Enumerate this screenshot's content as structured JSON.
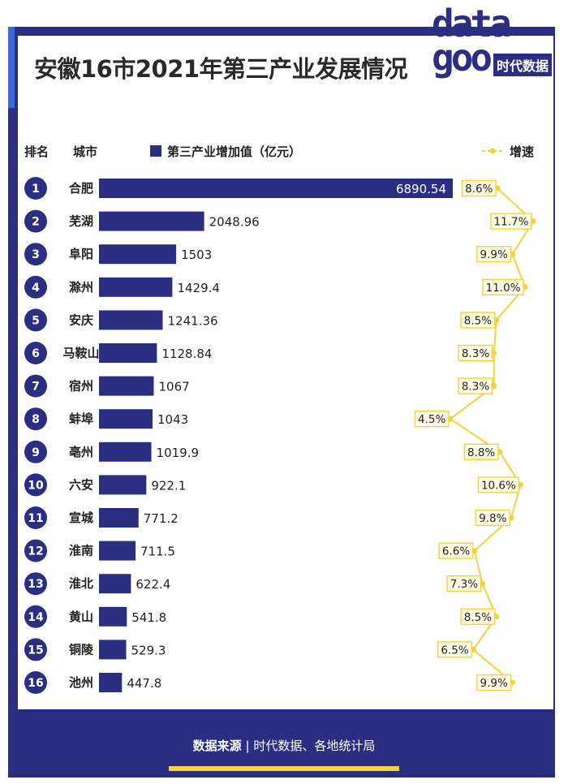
{
  "title": "安徽16市2021年第三产业发展情况",
  "logo": {
    "mark": "data\ngoo",
    "tag": "时代数据"
  },
  "headers": {
    "rank": "排名",
    "city": "城市",
    "bar_legend": "第三产业增加值（亿元）",
    "line_legend": "增速"
  },
  "footer": {
    "label": "数据来源",
    "separator": "|",
    "text": "时代数据、各地统计局"
  },
  "colors": {
    "bar": "#2b2f82",
    "line": "#f3d23a",
    "frame": "#2b2f82"
  },
  "chart_data": {
    "type": "bar",
    "orientation": "horizontal",
    "title": "安徽16市2021年第三产业发展情况",
    "categories": [
      "合肥",
      "芜湖",
      "阜阳",
      "滁州",
      "安庆",
      "马鞍山",
      "宿州",
      "蚌埠",
      "亳州",
      "六安",
      "宣城",
      "淮南",
      "淮北",
      "黄山",
      "铜陵",
      "池州"
    ],
    "ranks": [
      "1",
      "2",
      "3",
      "4",
      "5",
      "6",
      "7",
      "8",
      "9",
      "10",
      "11",
      "12",
      "13",
      "14",
      "15",
      "16"
    ],
    "series": [
      {
        "name": "第三产业增加值（亿元）",
        "type": "bar",
        "values": [
          6890.54,
          2048.96,
          1503,
          1429.4,
          1241.36,
          1128.84,
          1067,
          1043,
          1019.9,
          922.1,
          771.2,
          711.5,
          622.4,
          541.8,
          529.3,
          447.8
        ],
        "labels": [
          "6890.54",
          "2048.96",
          "1503",
          "1429.4",
          "1241.36",
          "1128.84",
          "1067",
          "1043",
          "1019.9",
          "922.1",
          "771.2",
          "711.5",
          "622.4",
          "541.8",
          "529.3",
          "447.8"
        ]
      },
      {
        "name": "增速",
        "type": "line",
        "unit": "%",
        "values": [
          8.6,
          11.7,
          9.9,
          11.0,
          8.5,
          8.3,
          8.3,
          4.5,
          8.8,
          10.6,
          9.8,
          6.6,
          7.3,
          8.5,
          6.5,
          9.9
        ],
        "labels": [
          "8.6%",
          "11.7%",
          "9.9%",
          "11.0%",
          "8.5%",
          "8.3%",
          "8.3%",
          "4.5%",
          "8.8%",
          "10.6%",
          "9.8%",
          "6.6%",
          "7.3%",
          "8.5%",
          "6.5%",
          "9.9%"
        ]
      }
    ]
  }
}
